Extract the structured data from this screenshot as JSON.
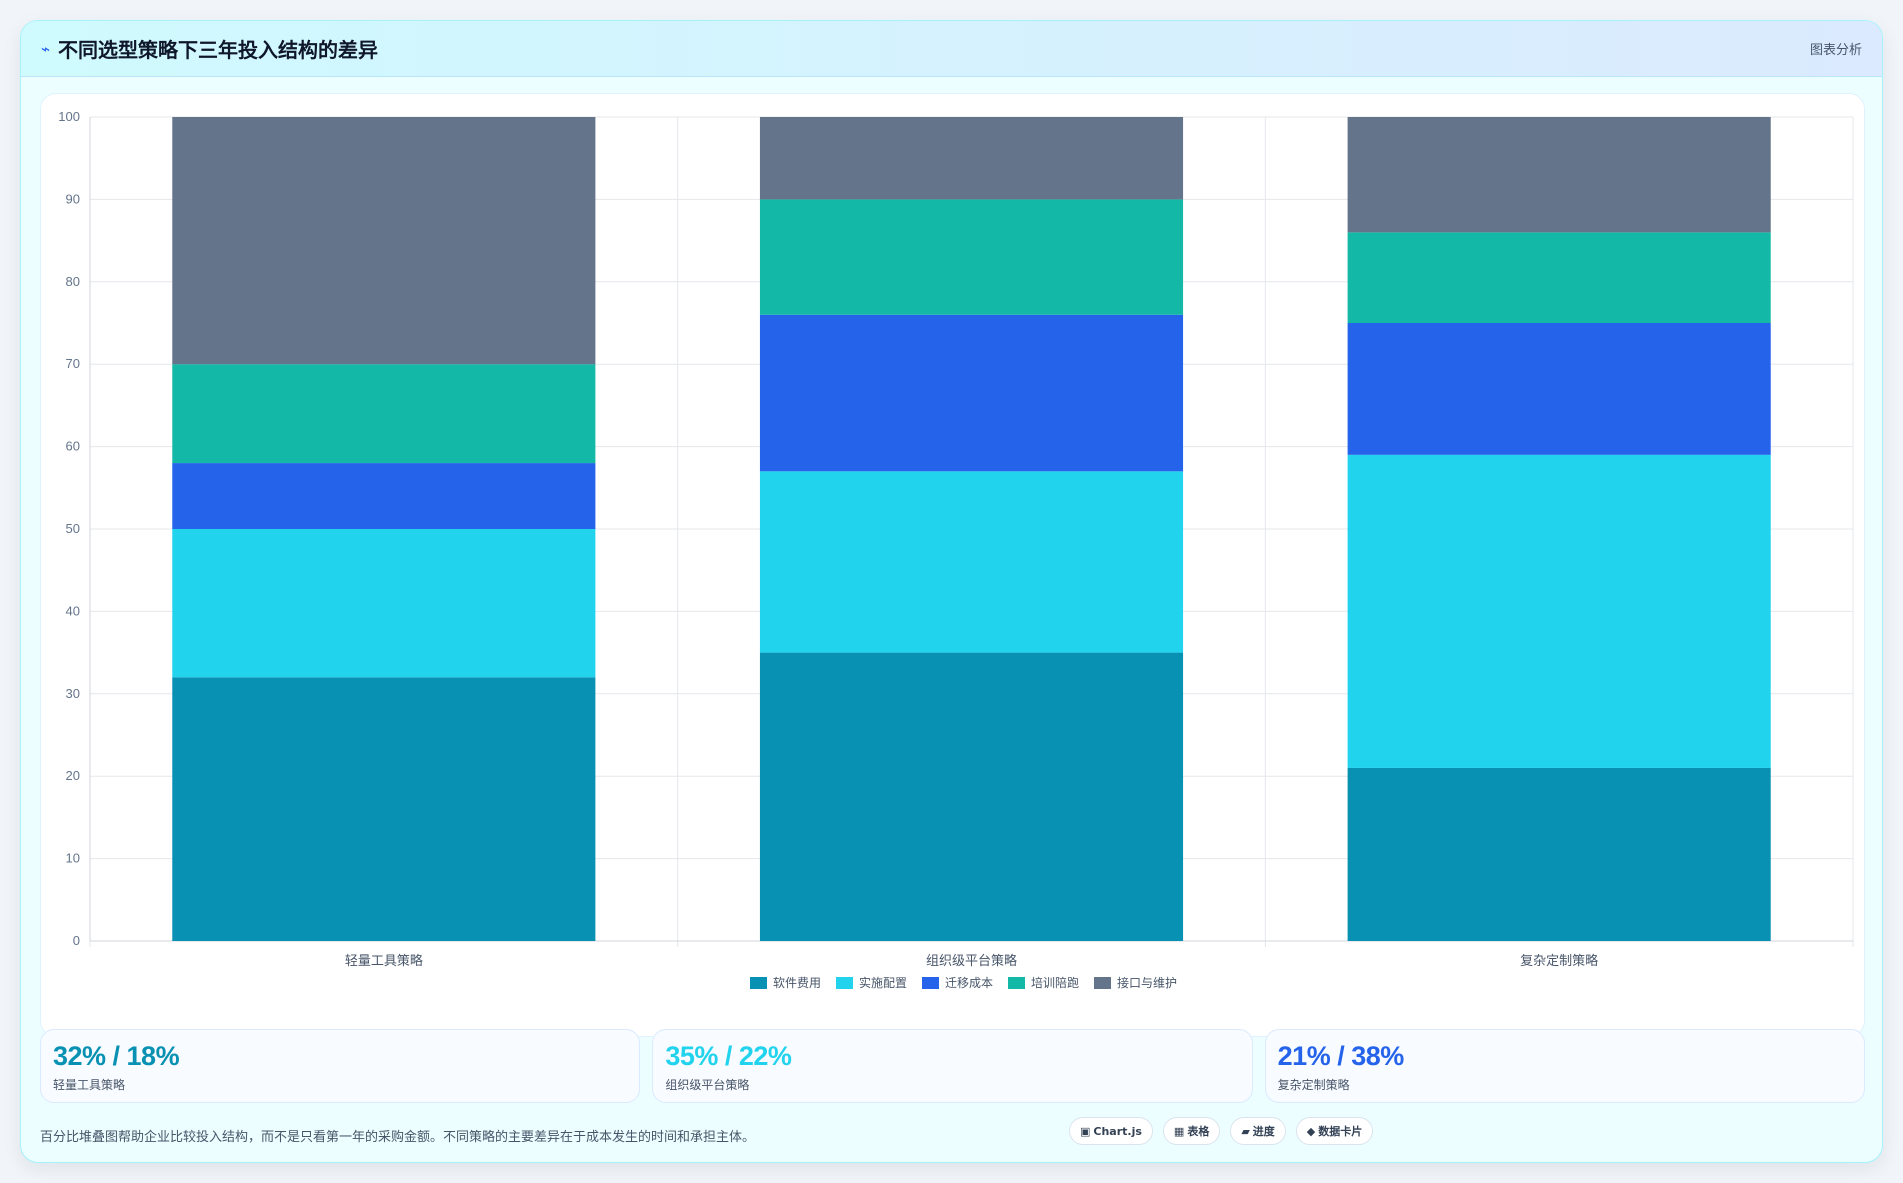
{
  "header": {
    "icon": "chart-trend-icon",
    "title": "不同选型策略下三年投入结构的差异",
    "tag": "图表分析"
  },
  "chart_data": {
    "type": "bar",
    "stacked": true,
    "categories": [
      "轻量工具策略",
      "组织级平台策略",
      "复杂定制策略"
    ],
    "series": [
      {
        "name": "软件费用",
        "color": "#0891b2",
        "values": [
          32,
          35,
          21
        ]
      },
      {
        "name": "实施配置",
        "color": "#22d3ee",
        "values": [
          18,
          22,
          38
        ]
      },
      {
        "name": "迁移成本",
        "color": "#2563eb",
        "values": [
          8,
          19,
          16
        ]
      },
      {
        "name": "培训陪跑",
        "color": "#14b8a6",
        "values": [
          12,
          14,
          11
        ]
      },
      {
        "name": "接口与维护",
        "color": "#64748b",
        "values": [
          30,
          10,
          14
        ]
      }
    ],
    "ylim": [
      0,
      100
    ],
    "yticks": [
      0,
      10,
      20,
      30,
      40,
      50,
      60,
      70,
      80,
      90,
      100
    ],
    "grid": true,
    "legend_position": "bottom"
  },
  "stats": [
    {
      "value": "32% / 18%",
      "label": "轻量工具策略",
      "color": "#0891b2"
    },
    {
      "value": "35% / 22%",
      "label": "组织级平台策略",
      "color": "#22d3ee"
    },
    {
      "value": "21% / 38%",
      "label": "复杂定制策略",
      "color": "#2563eb"
    }
  ],
  "footer": {
    "note": "百分比堆叠图帮助企业比较投入结构，而不是只看第一年的采购金额。不同策略的主要差异在于成本发生的时间和承担主体。",
    "chips": [
      {
        "icon": "▣",
        "label": "Chart.js"
      },
      {
        "icon": "▦",
        "label": "表格"
      },
      {
        "icon": "▰",
        "label": "进度"
      },
      {
        "icon": "◆",
        "label": "数据卡片"
      }
    ]
  }
}
